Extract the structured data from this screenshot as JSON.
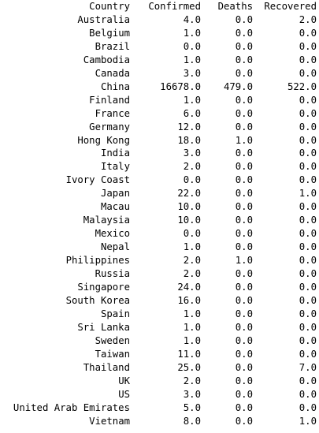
{
  "table": {
    "columns": [
      "Country",
      "Confirmed",
      "Deaths",
      "Recovered"
    ],
    "rows": [
      [
        "Australia",
        "4.0",
        "0.0",
        "2.0"
      ],
      [
        "Belgium",
        "1.0",
        "0.0",
        "0.0"
      ],
      [
        "Brazil",
        "0.0",
        "0.0",
        "0.0"
      ],
      [
        "Cambodia",
        "1.0",
        "0.0",
        "0.0"
      ],
      [
        "Canada",
        "3.0",
        "0.0",
        "0.0"
      ],
      [
        "China",
        "16678.0",
        "479.0",
        "522.0"
      ],
      [
        "Finland",
        "1.0",
        "0.0",
        "0.0"
      ],
      [
        "France",
        "6.0",
        "0.0",
        "0.0"
      ],
      [
        "Germany",
        "12.0",
        "0.0",
        "0.0"
      ],
      [
        "Hong Kong",
        "18.0",
        "1.0",
        "0.0"
      ],
      [
        "India",
        "3.0",
        "0.0",
        "0.0"
      ],
      [
        "Italy",
        "2.0",
        "0.0",
        "0.0"
      ],
      [
        "Ivory Coast",
        "0.0",
        "0.0",
        "0.0"
      ],
      [
        "Japan",
        "22.0",
        "0.0",
        "1.0"
      ],
      [
        "Macau",
        "10.0",
        "0.0",
        "0.0"
      ],
      [
        "Malaysia",
        "10.0",
        "0.0",
        "0.0"
      ],
      [
        "Mexico",
        "0.0",
        "0.0",
        "0.0"
      ],
      [
        "Nepal",
        "1.0",
        "0.0",
        "0.0"
      ],
      [
        "Philippines",
        "2.0",
        "1.0",
        "0.0"
      ],
      [
        "Russia",
        "2.0",
        "0.0",
        "0.0"
      ],
      [
        "Singapore",
        "24.0",
        "0.0",
        "0.0"
      ],
      [
        "South Korea",
        "16.0",
        "0.0",
        "0.0"
      ],
      [
        "Spain",
        "1.0",
        "0.0",
        "0.0"
      ],
      [
        "Sri Lanka",
        "1.0",
        "0.0",
        "0.0"
      ],
      [
        "Sweden",
        "1.0",
        "0.0",
        "0.0"
      ],
      [
        "Taiwan",
        "11.0",
        "0.0",
        "0.0"
      ],
      [
        "Thailand",
        "25.0",
        "0.0",
        "7.0"
      ],
      [
        "UK",
        "2.0",
        "0.0",
        "0.0"
      ],
      [
        "US",
        "3.0",
        "0.0",
        "0.0"
      ],
      [
        "United Arab Emirates",
        "5.0",
        "0.0",
        "0.0"
      ],
      [
        "Vietnam",
        "8.0",
        "0.0",
        "1.0"
      ]
    ]
  }
}
